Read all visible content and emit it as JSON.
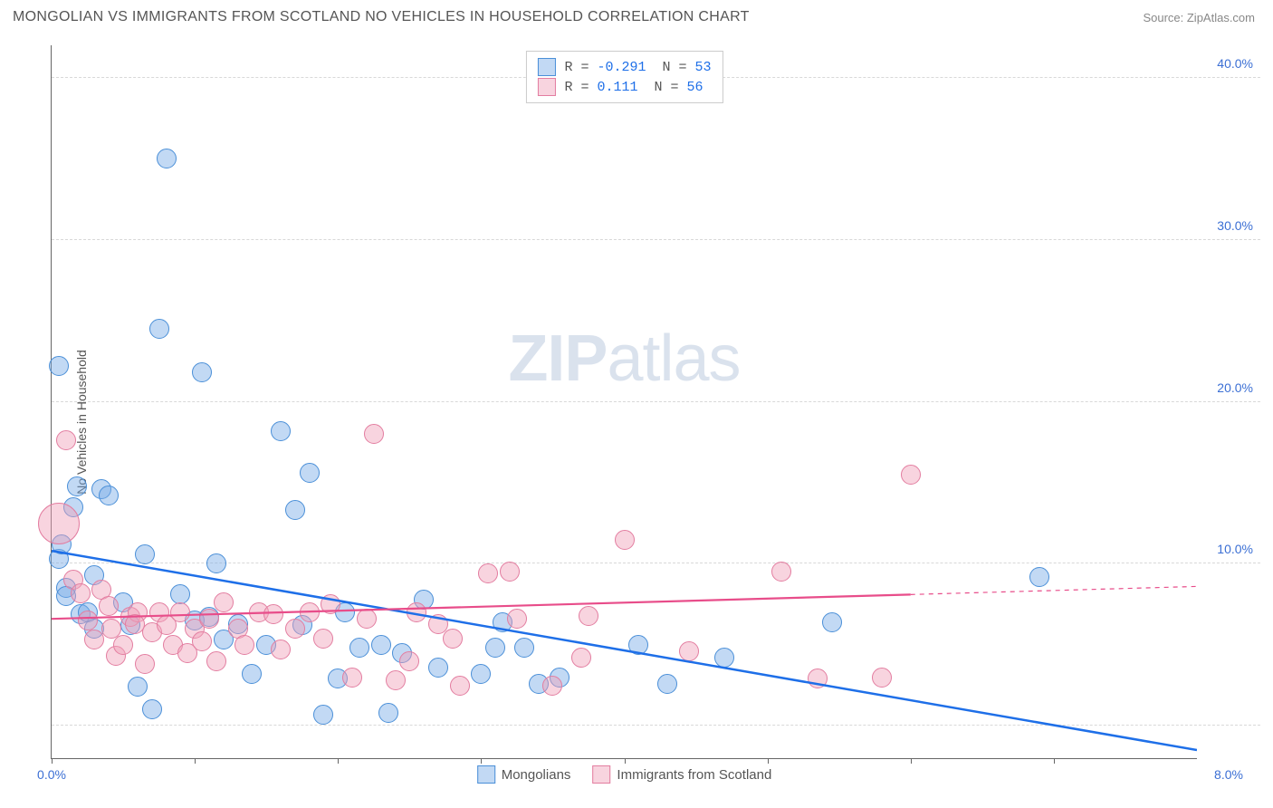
{
  "header": {
    "title": "MONGOLIAN VS IMMIGRANTS FROM SCOTLAND NO VEHICLES IN HOUSEHOLD CORRELATION CHART",
    "source_prefix": "Source: ",
    "source_name": "ZipAtlas.com"
  },
  "ylabel": "No Vehicles in Household",
  "watermark_a": "ZIP",
  "watermark_b": "atlas",
  "chart": {
    "type": "scatter",
    "xlim": [
      0,
      8
    ],
    "ylim": [
      -2,
      42
    ],
    "x_ticks": [
      0,
      1,
      2,
      3,
      4,
      5,
      6,
      7
    ],
    "x_tick_labels": {
      "0": "0.0%",
      "8": "8.0%"
    },
    "y_gridlines": [
      0,
      10,
      20,
      30,
      40
    ],
    "y_tick_labels": {
      "10": "10.0%",
      "20": "20.0%",
      "30": "30.0%",
      "40": "40.0%"
    },
    "background_color": "#ffffff",
    "grid_color": "#d8d8d8",
    "axis_color": "#666666",
    "tick_label_color": "#3b6fd4",
    "marker_radius": 10,
    "series": [
      {
        "name": "Mongolians",
        "fill": "rgba(120,170,230,0.45)",
        "stroke": "#4a8fd8",
        "trend": {
          "x1": 0,
          "y1": 10.8,
          "x2": 8,
          "y2": -1.5,
          "color": "#1e6fe8",
          "width": 2.5
        },
        "stats": {
          "R": "-0.291",
          "N": "53"
        },
        "points": [
          [
            0.05,
            10.3
          ],
          [
            0.05,
            22.2
          ],
          [
            0.07,
            11.2
          ],
          [
            0.1,
            8.5
          ],
          [
            0.1,
            8.0
          ],
          [
            0.15,
            13.5
          ],
          [
            0.18,
            14.8
          ],
          [
            0.2,
            6.9
          ],
          [
            0.25,
            7.0
          ],
          [
            0.3,
            9.3
          ],
          [
            0.35,
            14.6
          ],
          [
            0.4,
            14.2
          ],
          [
            0.5,
            7.6
          ],
          [
            0.55,
            6.2
          ],
          [
            0.6,
            2.4
          ],
          [
            0.65,
            10.6
          ],
          [
            0.7,
            1.0
          ],
          [
            0.75,
            24.5
          ],
          [
            0.8,
            35.0
          ],
          [
            0.9,
            8.1
          ],
          [
            1.0,
            6.5
          ],
          [
            1.05,
            21.8
          ],
          [
            1.1,
            6.7
          ],
          [
            1.15,
            10.0
          ],
          [
            1.2,
            5.3
          ],
          [
            1.3,
            6.3
          ],
          [
            1.4,
            3.2
          ],
          [
            1.5,
            5.0
          ],
          [
            1.6,
            18.2
          ],
          [
            1.7,
            13.3
          ],
          [
            1.75,
            6.2
          ],
          [
            1.8,
            15.6
          ],
          [
            1.9,
            0.7
          ],
          [
            2.0,
            2.9
          ],
          [
            2.05,
            7.0
          ],
          [
            2.15,
            4.8
          ],
          [
            2.3,
            5.0
          ],
          [
            2.35,
            0.8
          ],
          [
            2.45,
            4.5
          ],
          [
            2.6,
            7.8
          ],
          [
            2.7,
            3.6
          ],
          [
            3.0,
            3.2
          ],
          [
            3.1,
            4.8
          ],
          [
            3.15,
            6.4
          ],
          [
            3.3,
            4.8
          ],
          [
            3.4,
            2.6
          ],
          [
            3.55,
            3.0
          ],
          [
            4.1,
            5.0
          ],
          [
            4.3,
            2.6
          ],
          [
            4.7,
            4.2
          ],
          [
            5.45,
            6.4
          ],
          [
            6.9,
            9.2
          ],
          [
            0.3,
            6.0
          ]
        ]
      },
      {
        "name": "Immigrants from Scotland",
        "fill": "rgba(240,160,185,0.45)",
        "stroke": "#e37da0",
        "trend": {
          "x1": 0,
          "y1": 6.6,
          "x2": 6.0,
          "y2": 8.1,
          "color": "#e84d8a",
          "width": 2.2,
          "dash_x1": 6.0,
          "dash_y1": 8.1,
          "dash_x2": 8.0,
          "dash_y2": 8.6
        },
        "stats": {
          "R": " 0.111",
          "N": "56"
        },
        "points": [
          [
            0.05,
            12.5,
            22
          ],
          [
            0.1,
            17.6
          ],
          [
            0.15,
            9.0
          ],
          [
            0.2,
            8.2
          ],
          [
            0.25,
            6.5
          ],
          [
            0.3,
            5.3
          ],
          [
            0.35,
            8.4
          ],
          [
            0.4,
            7.4
          ],
          [
            0.45,
            4.3
          ],
          [
            0.5,
            5.0
          ],
          [
            0.55,
            6.7
          ],
          [
            0.6,
            7.0
          ],
          [
            0.65,
            3.8
          ],
          [
            0.7,
            5.8
          ],
          [
            0.75,
            7.0
          ],
          [
            0.8,
            6.2
          ],
          [
            0.85,
            5.0
          ],
          [
            0.9,
            7.0
          ],
          [
            0.95,
            4.5
          ],
          [
            1.0,
            6.0
          ],
          [
            1.05,
            5.2
          ],
          [
            1.1,
            6.6
          ],
          [
            1.15,
            4.0
          ],
          [
            1.2,
            7.6
          ],
          [
            1.3,
            6.0
          ],
          [
            1.35,
            5.0
          ],
          [
            1.45,
            7.0
          ],
          [
            1.55,
            6.9
          ],
          [
            1.6,
            4.7
          ],
          [
            1.7,
            6.0
          ],
          [
            1.8,
            7.0
          ],
          [
            1.9,
            5.4
          ],
          [
            1.95,
            7.5
          ],
          [
            2.1,
            3.0
          ],
          [
            2.2,
            6.6
          ],
          [
            2.25,
            18.0
          ],
          [
            2.4,
            2.8
          ],
          [
            2.5,
            4.0
          ],
          [
            2.55,
            7.0
          ],
          [
            2.7,
            6.3
          ],
          [
            2.8,
            5.4
          ],
          [
            2.85,
            2.5
          ],
          [
            3.05,
            9.4
          ],
          [
            3.2,
            9.5
          ],
          [
            3.25,
            6.6
          ],
          [
            3.5,
            2.5
          ],
          [
            3.7,
            4.2
          ],
          [
            3.75,
            6.8
          ],
          [
            4.0,
            11.5
          ],
          [
            4.45,
            4.6
          ],
          [
            5.1,
            9.5
          ],
          [
            5.35,
            2.9
          ],
          [
            5.8,
            3.0
          ],
          [
            6.0,
            15.5
          ],
          [
            0.42,
            6.0
          ],
          [
            0.58,
            6.3
          ]
        ]
      }
    ]
  },
  "legend_top": [
    {
      "swatch_fill": "rgba(120,170,230,0.45)",
      "swatch_stroke": "#4a8fd8",
      "r_label": "R =",
      "r_val": "-0.291",
      "n_label": "N =",
      "n_val": "53"
    },
    {
      "swatch_fill": "rgba(240,160,185,0.45)",
      "swatch_stroke": "#e37da0",
      "r_label": "R =",
      "r_val": " 0.111",
      "n_label": "N =",
      "n_val": "56"
    }
  ],
  "legend_bottom": [
    {
      "swatch_fill": "rgba(120,170,230,0.45)",
      "swatch_stroke": "#4a8fd8",
      "label": "Mongolians"
    },
    {
      "swatch_fill": "rgba(240,160,185,0.45)",
      "swatch_stroke": "#e37da0",
      "label": "Immigrants from Scotland"
    }
  ]
}
